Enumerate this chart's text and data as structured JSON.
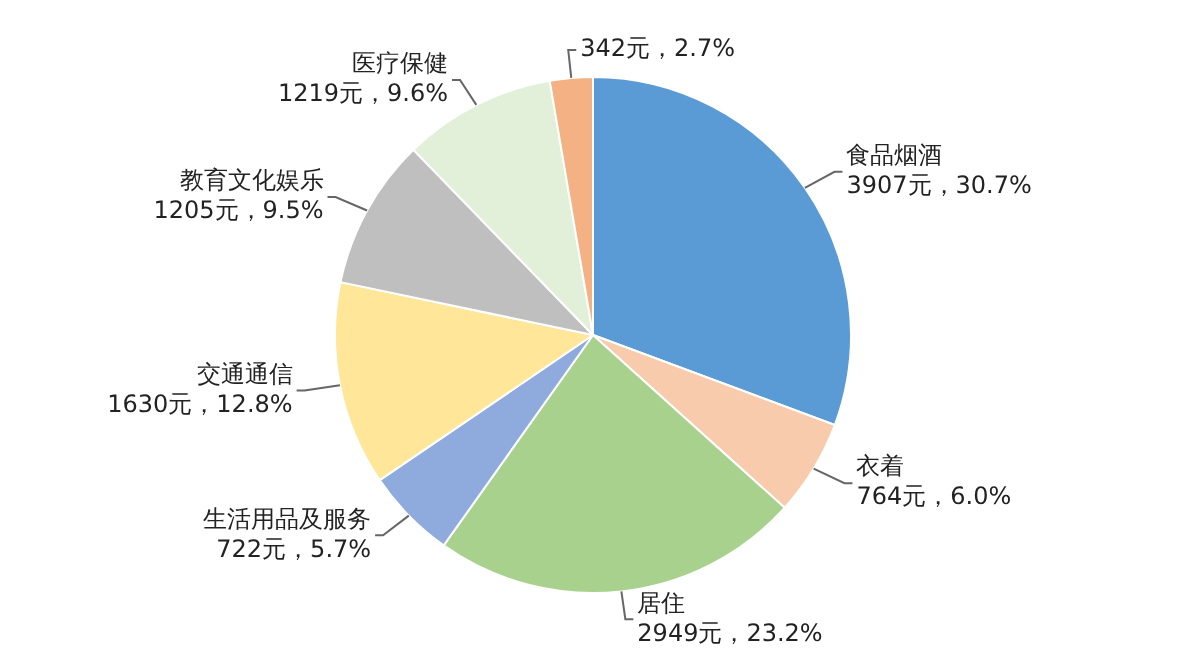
{
  "chart_data": {
    "type": "pie",
    "categories": [
      "食品烟酒",
      "衣着",
      "居住",
      "生活用品及服务",
      "交通通信",
      "教育文化娱乐",
      "医疗保健",
      null
    ],
    "values": [
      3907,
      764,
      2949,
      722,
      1630,
      1205,
      1219,
      342
    ],
    "colors": [
      "#5b9bd5",
      "#f8cbad",
      "#a9d18e",
      "#8faadc",
      "#ffe699",
      "#bfbfbf",
      "#e2f0d9",
      "#f4b183"
    ],
    "value_labels": [
      "3907元，30.7%",
      "764元，6.0%",
      "2949元，23.2%",
      "722元，5.7%",
      "1630元，12.8%",
      "1205元，9.5%",
      "1219元，9.6%",
      "342元，2.7%"
    ],
    "legend": false
  }
}
